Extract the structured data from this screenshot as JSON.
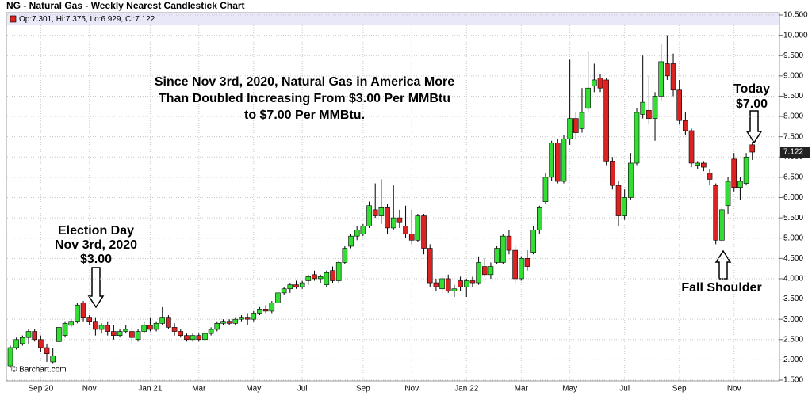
{
  "chart_data": {
    "type": "candlestick",
    "title": "NG - Natural Gas - Weekly Nearest Candlestick Chart",
    "legend_text": "Op:7.301, Hi:7.375, Lo:6.929, Cl:7.122",
    "last_price": 7.122,
    "watermark": "© Barchart.com",
    "annotations": {
      "headline": [
        "Since Nov 3rd, 2020, Natural Gas in America More",
        "Than Doubled Increasing From $3.00 Per MMBtu",
        "to $7.00 Per MMBtu."
      ],
      "election": [
        "Election Day",
        "Nov 3rd, 2020",
        "$3.00"
      ],
      "today": [
        "Today",
        "$7.00"
      ],
      "shoulder": [
        "Fall Shoulder"
      ]
    },
    "up_color": "#33dd33",
    "down_color": "#dd2222",
    "grid": true,
    "categories": [
      null,
      null,
      null,
      null,
      null,
      "Sep 20",
      null,
      null,
      null,
      null,
      null,
      null,
      null,
      "Nov",
      null,
      null,
      null,
      null,
      null,
      null,
      null,
      null,
      null,
      "Jan 21",
      null,
      null,
      null,
      null,
      null,
      null,
      null,
      "Mar",
      null,
      null,
      null,
      null,
      null,
      null,
      null,
      null,
      "May",
      null,
      null,
      null,
      null,
      null,
      null,
      null,
      "Jul",
      null,
      null,
      null,
      null,
      null,
      null,
      null,
      null,
      null,
      "Sep",
      null,
      null,
      null,
      null,
      null,
      null,
      null,
      "Nov",
      null,
      null,
      null,
      null,
      null,
      null,
      null,
      null,
      "Jan 22",
      null,
      null,
      null,
      null,
      null,
      null,
      null,
      null,
      "Mar",
      null,
      null,
      null,
      null,
      null,
      null,
      null,
      "May",
      null,
      null,
      null,
      null,
      null,
      null,
      null,
      null,
      "Jul",
      null,
      null,
      null,
      null,
      null,
      null,
      null,
      null,
      "Sep",
      null,
      null,
      null,
      null,
      null,
      null,
      null,
      null,
      "Nov",
      null,
      null,
      null
    ],
    "open": [
      1.85,
      2.3,
      2.4,
      2.55,
      2.7,
      2.5,
      2.3,
      1.95,
      2.45,
      2.6,
      2.85,
      2.95,
      3.4,
      3.05,
      2.95,
      2.75,
      2.85,
      2.7,
      2.6,
      2.7,
      2.7,
      2.5,
      2.7,
      2.85,
      2.75,
      2.9,
      3.05,
      2.8,
      2.7,
      2.6,
      2.5,
      2.6,
      2.5,
      2.65,
      2.75,
      2.9,
      2.95,
      2.9,
      3.0,
      3.05,
      3.0,
      3.15,
      3.25,
      3.2,
      3.4,
      3.65,
      3.75,
      3.85,
      3.8,
      3.95,
      4.1,
      4.0,
      3.85,
      4.2,
      3.95,
      4.4,
      4.8,
      5.05,
      5.1,
      5.3,
      5.7,
      5.55,
      5.75,
      5.25,
      5.5,
      5.3,
      5.1,
      4.95,
      5.55,
      4.75,
      3.9,
      3.75,
      4.0,
      3.7,
      3.95,
      3.8,
      3.95,
      3.9,
      4.3,
      4.1,
      4.4,
      4.4,
      5.05,
      4.7,
      4.0,
      4.5,
      4.65,
      5.2,
      5.9,
      6.5,
      7.35,
      6.4,
      7.45,
      7.95,
      7.7,
      8.2,
      8.75,
      8.95,
      8.9,
      6.9,
      6.3,
      5.55,
      6.0,
      6.85,
      8.05,
      8.15,
      7.95,
      8.5,
      9.3,
      9.3,
      8.65,
      7.9,
      7.65,
      6.8,
      6.85,
      6.6,
      6.3,
      4.95,
      5.8,
      6.95,
      6.25,
      6.35,
      7.301
    ],
    "high": [
      2.35,
      2.55,
      2.6,
      2.75,
      2.75,
      2.6,
      2.4,
      2.3,
      2.8,
      2.95,
      3.0,
      3.4,
      3.45,
      3.1,
      3.05,
      2.9,
      2.95,
      2.85,
      2.75,
      2.85,
      2.8,
      2.75,
      2.95,
      3.05,
      2.95,
      3.3,
      3.1,
      2.9,
      2.75,
      2.65,
      2.65,
      2.65,
      2.7,
      2.8,
      2.95,
      3.0,
      3.0,
      3.05,
      3.1,
      3.15,
      3.2,
      3.3,
      3.35,
      3.45,
      3.7,
      3.8,
      3.9,
      3.95,
      3.95,
      4.1,
      4.2,
      4.1,
      4.2,
      4.3,
      4.45,
      4.8,
      5.1,
      5.3,
      5.35,
      5.9,
      6.35,
      6.45,
      5.85,
      6.3,
      5.7,
      5.8,
      5.7,
      5.6,
      5.6,
      4.85,
      4.0,
      4.05,
      4.1,
      3.85,
      4.05,
      4.0,
      4.05,
      4.55,
      4.5,
      4.4,
      4.8,
      5.1,
      5.2,
      4.8,
      4.55,
      4.7,
      5.3,
      5.8,
      6.6,
      7.4,
      7.45,
      7.55,
      9.4,
      8.1,
      8.7,
      9.6,
      9.3,
      9.05,
      8.95,
      7.0,
      6.4,
      6.2,
      7.1,
      8.2,
      9.5,
      9.0,
      8.6,
      9.8,
      10.0,
      9.55,
      8.9,
      8.1,
      7.7,
      6.9,
      6.9,
      6.7,
      6.35,
      5.75,
      6.5,
      7.1,
      6.5,
      7.1,
      7.375
    ],
    "low": [
      1.8,
      2.25,
      2.35,
      2.4,
      2.45,
      2.2,
      1.95,
      1.9,
      2.45,
      2.55,
      2.8,
      2.9,
      2.95,
      2.85,
      2.6,
      2.65,
      2.6,
      2.5,
      2.55,
      2.65,
      2.4,
      2.45,
      2.65,
      2.7,
      2.7,
      2.85,
      2.75,
      2.6,
      2.55,
      2.45,
      2.45,
      2.45,
      2.45,
      2.6,
      2.7,
      2.85,
      2.85,
      2.85,
      2.95,
      2.85,
      2.95,
      3.1,
      3.15,
      3.15,
      3.35,
      3.6,
      3.65,
      3.75,
      3.75,
      3.85,
      3.95,
      3.9,
      3.8,
      3.9,
      3.9,
      4.35,
      4.75,
      4.95,
      5.05,
      5.25,
      5.5,
      5.35,
      5.1,
      5.2,
      5.25,
      5.0,
      4.85,
      4.9,
      4.6,
      3.8,
      3.7,
      3.65,
      3.65,
      3.55,
      3.7,
      3.55,
      3.8,
      3.85,
      4.05,
      4.0,
      4.35,
      4.35,
      4.6,
      3.9,
      3.95,
      4.2,
      4.6,
      5.1,
      5.85,
      6.4,
      6.35,
      6.35,
      7.3,
      7.45,
      7.6,
      8.1,
      8.6,
      8.6,
      6.8,
      6.2,
      5.3,
      5.45,
      5.95,
      6.8,
      7.95,
      7.8,
      7.4,
      8.4,
      8.9,
      8.5,
      7.8,
      7.55,
      6.75,
      6.7,
      6.65,
      6.3,
      4.85,
      4.9,
      5.6,
      6.15,
      5.95,
      6.3,
      6.929
    ],
    "close": [
      2.3,
      2.5,
      2.55,
      2.7,
      2.5,
      2.3,
      2.15,
      2.1,
      2.8,
      2.9,
      2.95,
      3.35,
      3.05,
      2.95,
      2.75,
      2.85,
      2.7,
      2.6,
      2.7,
      2.75,
      2.55,
      2.7,
      2.85,
      2.75,
      2.9,
      3.05,
      2.8,
      2.7,
      2.6,
      2.5,
      2.6,
      2.5,
      2.65,
      2.75,
      2.9,
      2.95,
      2.9,
      3.0,
      3.05,
      3.0,
      3.15,
      3.25,
      3.2,
      3.4,
      3.65,
      3.75,
      3.85,
      3.8,
      3.9,
      4.05,
      4.0,
      4.05,
      4.15,
      3.95,
      4.4,
      4.75,
      5.05,
      5.2,
      5.3,
      5.8,
      5.55,
      5.75,
      5.25,
      5.5,
      5.4,
      5.1,
      4.95,
      5.55,
      4.75,
      3.9,
      3.8,
      4.0,
      3.7,
      3.75,
      3.8,
      3.95,
      3.9,
      4.4,
      4.1,
      4.3,
      4.75,
      5.05,
      4.7,
      4.0,
      4.5,
      4.3,
      5.2,
      5.75,
      6.5,
      7.35,
      6.4,
      7.45,
      7.95,
      7.6,
      8.1,
      8.7,
      8.9,
      8.7,
      6.9,
      6.3,
      5.55,
      6.0,
      6.85,
      8.1,
      8.35,
      7.95,
      8.5,
      9.35,
      9.0,
      8.65,
      7.9,
      7.65,
      6.85,
      6.85,
      6.75,
      6.45,
      4.95,
      5.7,
      6.4,
      6.25,
      6.4,
      7.0,
      7.122
    ],
    "ylim": [
      1.5,
      10.5
    ],
    "yticks": [
      {
        "value": 1.5,
        "label": "1.500"
      },
      {
        "value": 2,
        "label": "2.000"
      },
      {
        "value": 2.5,
        "label": "2.500"
      },
      {
        "value": 3,
        "label": "3.000"
      },
      {
        "value": 3.5,
        "label": "3.500"
      },
      {
        "value": 4,
        "label": "4.000"
      },
      {
        "value": 4.5,
        "label": "4.500"
      },
      {
        "value": 5,
        "label": "5.000"
      },
      {
        "value": 5.5,
        "label": "5.500"
      },
      {
        "value": 6,
        "label": "6.000"
      },
      {
        "value": 6.5,
        "label": "6.500"
      },
      {
        "value": 7,
        "label": "7.000"
      },
      {
        "value": 7.5,
        "label": "7.500"
      },
      {
        "value": 8,
        "label": "8.000"
      },
      {
        "value": 8.5,
        "label": "8.500"
      },
      {
        "value": 9,
        "label": "9.000"
      },
      {
        "value": 9.5,
        "label": "9.500"
      },
      {
        "value": 10,
        "label": "10.000"
      },
      {
        "value": 10.5,
        "label": "10.500"
      }
    ]
  }
}
